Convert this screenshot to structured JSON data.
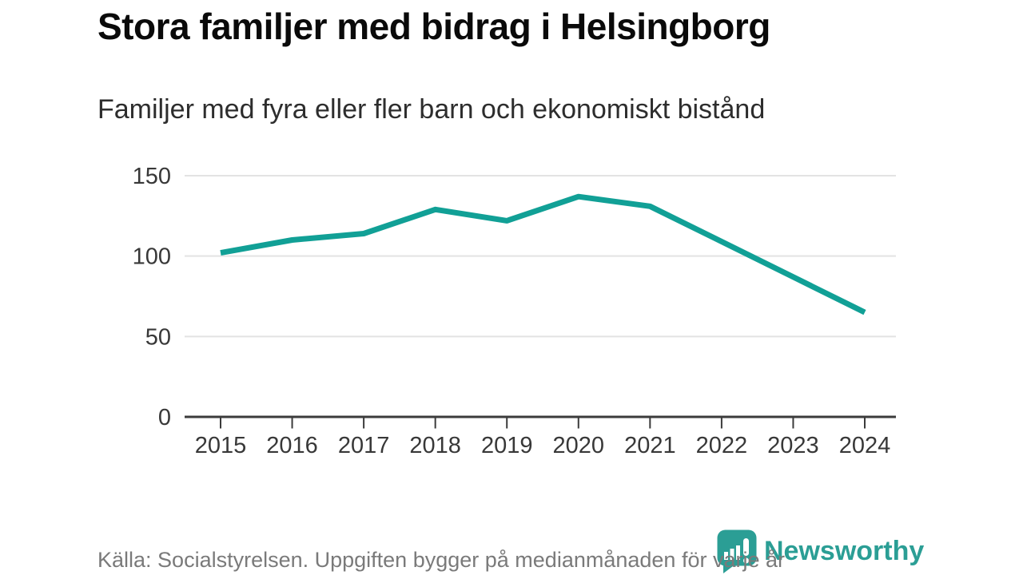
{
  "chart_data": {
    "type": "line",
    "title": "Stora familjer med bidrag i Helsingborg",
    "subtitle": "Familjer med fyra eller fler barn och ekonomiskt bistånd",
    "categories": [
      "2015",
      "2016",
      "2017",
      "2018",
      "2019",
      "2020",
      "2021",
      "2022",
      "2023",
      "2024"
    ],
    "values": [
      102,
      110,
      114,
      129,
      122,
      137,
      131,
      109,
      87,
      65
    ],
    "xlabel": "",
    "ylabel": "",
    "ylim": [
      0,
      150
    ],
    "yticks": [
      0,
      50,
      100,
      150
    ],
    "grid": true,
    "legend": false
  },
  "colors": {
    "line": "#11a096",
    "brand": "#2b9e95",
    "grid": "#e3e3e3",
    "axis": "#3b3b3b",
    "tick_label": "#383838",
    "title": "#0a0a0a",
    "subtitle": "#2d2d2d",
    "source": "#7a7a7a"
  },
  "footer": {
    "source_text": "Källa: Socialstyrelsen. Uppgiften bygger på medianmånaden för varje år",
    "brand_name": "Newsworthy"
  }
}
